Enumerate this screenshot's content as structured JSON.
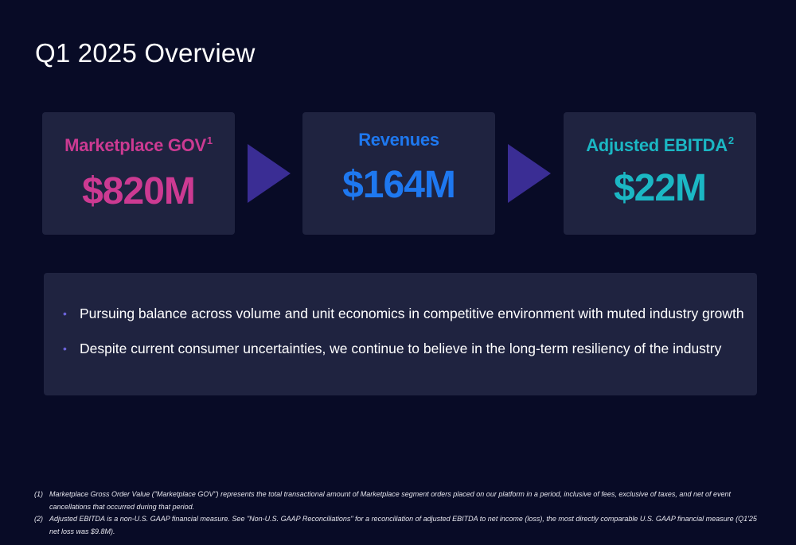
{
  "slide": {
    "title": "Q1 2025 Overview"
  },
  "metrics": [
    {
      "label": "Marketplace GOV",
      "footnote": "1",
      "value": "$820M",
      "color": "#cc3a92"
    },
    {
      "label": "Revenues",
      "footnote": "",
      "value": "$164M",
      "color": "#1e78f0"
    },
    {
      "label": "Adjusted EBITDA",
      "footnote": "2",
      "value": "$22M",
      "color": "#1bb7c4"
    }
  ],
  "arrow_icon": "right-triangle-icon",
  "arrow_color": "#3a2d94",
  "bullet_icon": "bullet-dot-icon",
  "bullets": [
    {
      "marker": "•",
      "text": "Pursuing balance across volume and unit economics in competitive environment with muted industry growth"
    },
    {
      "marker": "•",
      "text": "Despite current consumer uncertainties, we continue to believe in the long-term resiliency of the industry"
    }
  ],
  "footnotes": [
    {
      "number": "(1)",
      "text": "Marketplace Gross Order Value (\"Marketplace GOV\") represents the total transactional amount of Marketplace segment orders placed on our platform in a period, inclusive of fees, exclusive of taxes, and net of event cancellations that occurred during that period."
    },
    {
      "number": "(2)",
      "text": "Adjusted EBITDA is a non-U.S. GAAP financial measure. See \"Non-U.S. GAAP Reconciliations\" for a reconciliation of adjusted EBITDA to net income (loss), the most directly comparable U.S. GAAP financial measure (Q1'25 net loss was $9.8M)."
    }
  ]
}
